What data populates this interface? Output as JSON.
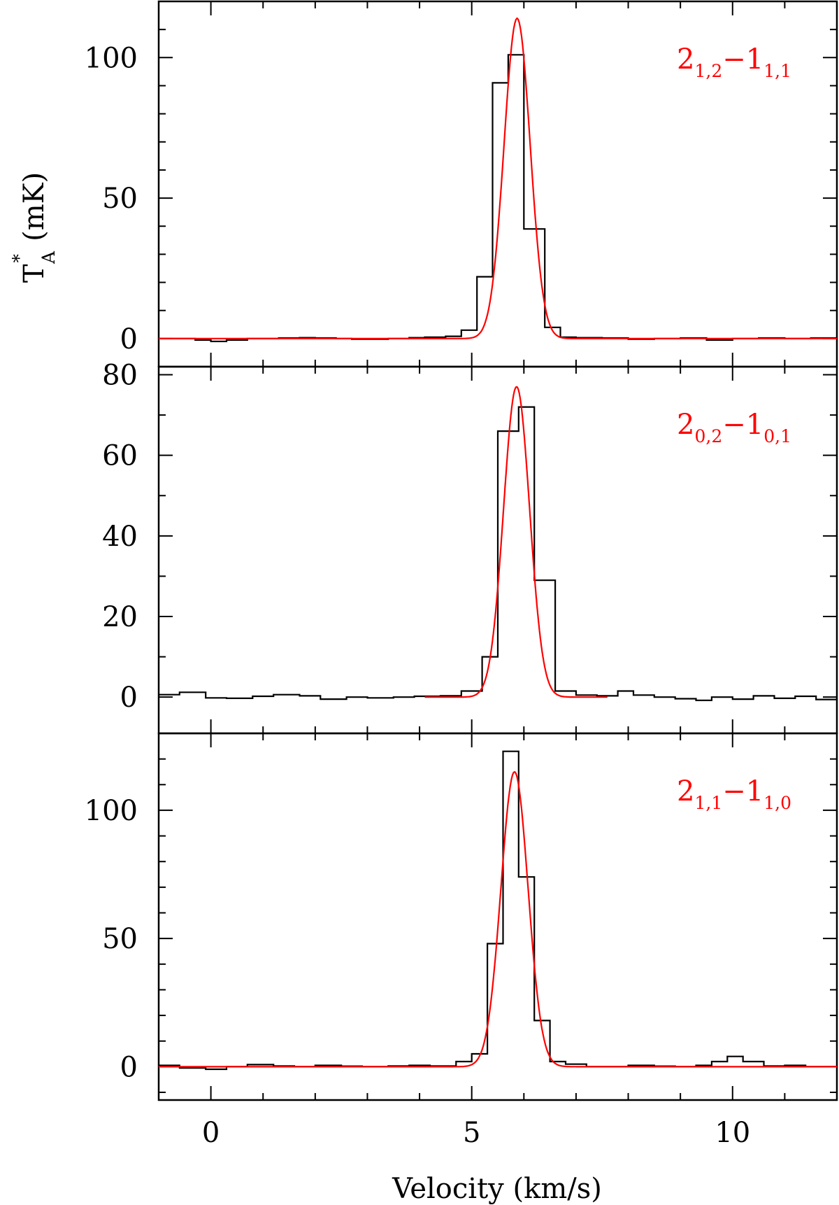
{
  "figure": {
    "xlabel": "Velocity (km/s)",
    "ylabel_main": "T",
    "ylabel_sup": "*",
    "ylabel_sub": "A",
    "ylabel_unit": "(mK)"
  },
  "colors": {
    "observed": "#000000",
    "fit": "#ff0000",
    "axes": "#000000"
  },
  "chart_data": [
    {
      "type": "line",
      "panel": "top",
      "transition": {
        "base_a": "2",
        "sub_a": "1,2",
        "sep": "−",
        "base_b": "1",
        "sub_b": "1,1"
      },
      "xlim": [
        -1,
        12
      ],
      "ylim": [
        -10,
        120
      ],
      "yticks": [
        0,
        50,
        100
      ],
      "yticks_minor_step": 10,
      "xticks": [
        0,
        5,
        10
      ],
      "series": [
        {
          "style": "histogram",
          "x": [
            -1.0,
            -0.6,
            -0.3,
            0.0,
            0.3,
            0.7,
            1.0,
            1.3,
            1.7,
            2.0,
            2.4,
            2.7,
            3.1,
            3.4,
            3.8,
            4.1,
            4.5,
            4.8,
            5.1,
            5.4,
            5.7,
            6.0,
            6.4,
            6.7,
            7.0,
            7.5,
            8.0,
            8.5,
            9.0,
            9.5,
            10.0,
            10.5,
            11.0,
            11.5,
            12.0
          ],
          "y": [
            0,
            0,
            -0.5,
            -1,
            -0.5,
            0,
            0,
            0.2,
            0.3,
            0.2,
            0,
            -0.2,
            -0.2,
            0,
            0.3,
            0.5,
            0.8,
            3,
            22,
            91,
            101,
            39,
            4,
            0.5,
            0.3,
            0.2,
            -0.2,
            0,
            0.2,
            -0.5,
            0,
            0.2,
            0,
            0.2,
            0
          ]
        },
        {
          "style": "gaussian",
          "amplitude": 114,
          "center": 5.87,
          "sigma": 0.25,
          "x_start": -1,
          "x_end": 12
        }
      ]
    },
    {
      "type": "line",
      "panel": "middle",
      "transition": {
        "base_a": "2",
        "sub_a": "0,2",
        "sep": "−",
        "base_b": "1",
        "sub_b": "0,1"
      },
      "xlim": [
        -1,
        12
      ],
      "ylim": [
        -9,
        82
      ],
      "yticks": [
        0,
        20,
        40,
        60,
        80
      ],
      "yticks_minor_step": 10,
      "xticks": [
        0,
        5,
        10
      ],
      "series": [
        {
          "style": "histogram",
          "x": [
            -1.0,
            -0.6,
            -0.1,
            0.3,
            0.8,
            1.2,
            1.7,
            2.1,
            2.6,
            3.0,
            3.5,
            3.9,
            4.4,
            4.8,
            5.2,
            5.5,
            5.9,
            6.2,
            6.6,
            7.0,
            7.4,
            7.8,
            8.1,
            8.5,
            8.9,
            9.3,
            9.6,
            10.0,
            10.4,
            10.8,
            11.2,
            11.6,
            12.0
          ],
          "y": [
            0.6,
            1.2,
            -0.2,
            -0.3,
            0.2,
            0.6,
            0.3,
            -0.5,
            0,
            -0.2,
            0,
            0.2,
            0.3,
            1.5,
            10,
            66,
            72,
            29,
            1.5,
            0.5,
            0.3,
            1.5,
            0.5,
            0,
            -0.4,
            -0.8,
            0,
            -0.5,
            0.3,
            -0.3,
            0.2,
            -0.6,
            0
          ]
        },
        {
          "style": "gaussian",
          "amplitude": 77,
          "center": 5.86,
          "sigma": 0.25,
          "x_start": 4.1,
          "x_end": 7.6
        }
      ]
    },
    {
      "type": "line",
      "panel": "bottom",
      "transition": {
        "base_a": "2",
        "sub_a": "1,1",
        "sep": "−",
        "base_b": "1",
        "sub_b": "1,0"
      },
      "xlim": [
        -1,
        12
      ],
      "ylim": [
        -13,
        130
      ],
      "yticks": [
        0,
        50,
        100
      ],
      "yticks_minor_step": 10,
      "xticks": [
        0,
        5,
        10
      ],
      "series": [
        {
          "style": "histogram",
          "x": [
            -1.0,
            -0.6,
            -0.1,
            0.3,
            0.7,
            1.2,
            1.6,
            2.0,
            2.5,
            2.9,
            3.4,
            3.8,
            4.2,
            4.7,
            5.0,
            5.3,
            5.6,
            5.9,
            6.2,
            6.5,
            6.8,
            7.2,
            7.6,
            8.0,
            8.5,
            8.9,
            9.3,
            9.6,
            9.9,
            10.2,
            10.6,
            11.0,
            11.4,
            12.0
          ],
          "y": [
            0.5,
            -0.5,
            -1,
            0,
            0.8,
            0.3,
            0,
            0.5,
            0.2,
            0,
            0.3,
            0.5,
            0.3,
            2,
            5,
            48,
            123,
            74,
            18,
            2,
            1,
            0,
            0,
            0.5,
            0.2,
            0,
            0.5,
            2,
            4,
            2,
            0.3,
            0.5,
            0,
            0
          ]
        },
        {
          "style": "gaussian",
          "amplitude": 115,
          "center": 5.82,
          "sigma": 0.26,
          "x_start": -1,
          "x_end": 12
        }
      ]
    }
  ]
}
